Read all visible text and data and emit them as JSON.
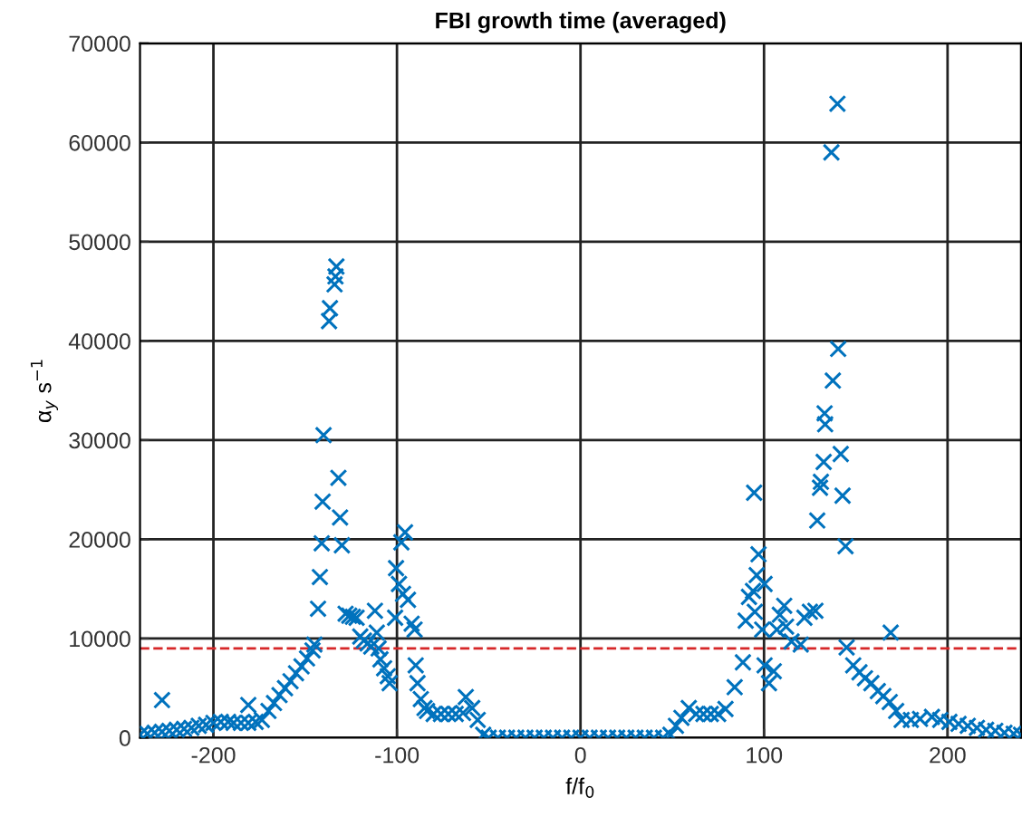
{
  "chart_data": {
    "type": "scatter",
    "title": "FBI growth time (averaged)",
    "xlabel": "f/f$_{0}$",
    "ylabel": "α$_{y}$ s$^{−1}$",
    "xlim": [
      -240,
      240
    ],
    "ylim": [
      0,
      70000
    ],
    "xticks": [
      -200,
      -100,
      0,
      100,
      200
    ],
    "yticks": [
      0,
      10000,
      20000,
      30000,
      40000,
      50000,
      60000,
      70000
    ],
    "grid": true,
    "marker": "cross",
    "ref_lines": [
      {
        "axis": "y",
        "value": 9000,
        "color": "#d62728",
        "line_style": "dashed"
      }
    ],
    "series": [
      {
        "color": "#0072bd",
        "x": [
          -240,
          -236,
          -232,
          -228,
          -228,
          -224,
          -220,
          -216,
          -212,
          -208,
          -204,
          -200,
          -196,
          -192,
          -189,
          -185,
          -181,
          -181,
          -177,
          -173.6,
          -170,
          -167,
          -164,
          -161,
          -158,
          -155,
          -152,
          -149,
          -146,
          -145,
          -143,
          -142,
          -141,
          -140.5,
          -140,
          -137,
          -136.5,
          -134,
          -133.5,
          -133,
          -131.9,
          -131,
          -130,
          -128,
          -126,
          -124,
          -122,
          -120,
          -118,
          -116,
          -114,
          -112,
          -111,
          -110,
          -109,
          -107,
          -105,
          -104,
          -101,
          -100.5,
          -98.9,
          -97.6,
          -96.7,
          -95.6,
          -94,
          -92,
          -90.4,
          -89.8,
          -88.8,
          -87,
          -85,
          -83.6,
          -80,
          -76,
          -72,
          -68,
          -64,
          -62.5,
          -59,
          -56,
          -53,
          -50,
          -45,
          -40,
          -35,
          -30,
          -25,
          -20,
          -15,
          -10,
          -5,
          0,
          5,
          10,
          15,
          20,
          25,
          30,
          35,
          40,
          45,
          49,
          52,
          55,
          59,
          63,
          67,
          71,
          75,
          79,
          84,
          88.5,
          90,
          91.8,
          94,
          94.6,
          95,
          96,
          97,
          99,
          100.3,
          100.3,
          102.7,
          105.3,
          107,
          108.6,
          111,
          112,
          115,
          120,
          122,
          125,
          128,
          129,
          130.5,
          131,
          132.5,
          133,
          133.3,
          136.7,
          137.5,
          140,
          140.4,
          141.8,
          142.8,
          144.4,
          145,
          148.6,
          152,
          155,
          158.5,
          162,
          165,
          168.5,
          169,
          172,
          175,
          180,
          185,
          191.5,
          196,
          201,
          206,
          211,
          216,
          221,
          226,
          231,
          236,
          240
        ],
        "values": [
          300,
          400,
          500,
          3800,
          600,
          700,
          800,
          900,
          1000,
          1200,
          1300,
          1500,
          1600,
          1600,
          1500,
          1500,
          3300,
          1500,
          1600,
          1800,
          2700,
          3500,
          4300,
          5000,
          5700,
          6500,
          7200,
          8000,
          8800,
          9400,
          13000,
          16200,
          19600,
          23800,
          30500,
          42000,
          43300,
          45700,
          46500,
          47500,
          26200,
          22200,
          19400,
          12500,
          12300,
          12200,
          12100,
          10200,
          9800,
          9500,
          9200,
          12800,
          10600,
          9000,
          7900,
          7000,
          6200,
          5500,
          12100,
          17100,
          15500,
          19700,
          14500,
          20700,
          13900,
          11500,
          10900,
          7300,
          5500,
          3900,
          3000,
          2700,
          2400,
          2400,
          2400,
          2400,
          2500,
          4100,
          3000,
          1800,
          300,
          0,
          0,
          0,
          0,
          0,
          0,
          0,
          0,
          0,
          0,
          0,
          0,
          0,
          0,
          0,
          0,
          0,
          0,
          0,
          0,
          300,
          1200,
          2000,
          3000,
          2400,
          2400,
          2400,
          2400,
          2900,
          5100,
          7600,
          11800,
          14200,
          14800,
          24700,
          12700,
          16400,
          18500,
          10900,
          15500,
          7300,
          5500,
          6700,
          10900,
          12400,
          13300,
          11200,
          9700,
          9400,
          12100,
          12700,
          12800,
          21900,
          25200,
          25800,
          27800,
          32700,
          31600,
          59000,
          36000,
          63900,
          39200,
          28600,
          24400,
          19300,
          9100,
          7300,
          6600,
          6000,
          5500,
          4700,
          4200,
          3600,
          10600,
          2700,
          1800,
          1800,
          1900,
          2100,
          1800,
          1600,
          1400,
          1200,
          1000,
          800,
          700,
          500,
          400,
          300
        ]
      }
    ]
  }
}
